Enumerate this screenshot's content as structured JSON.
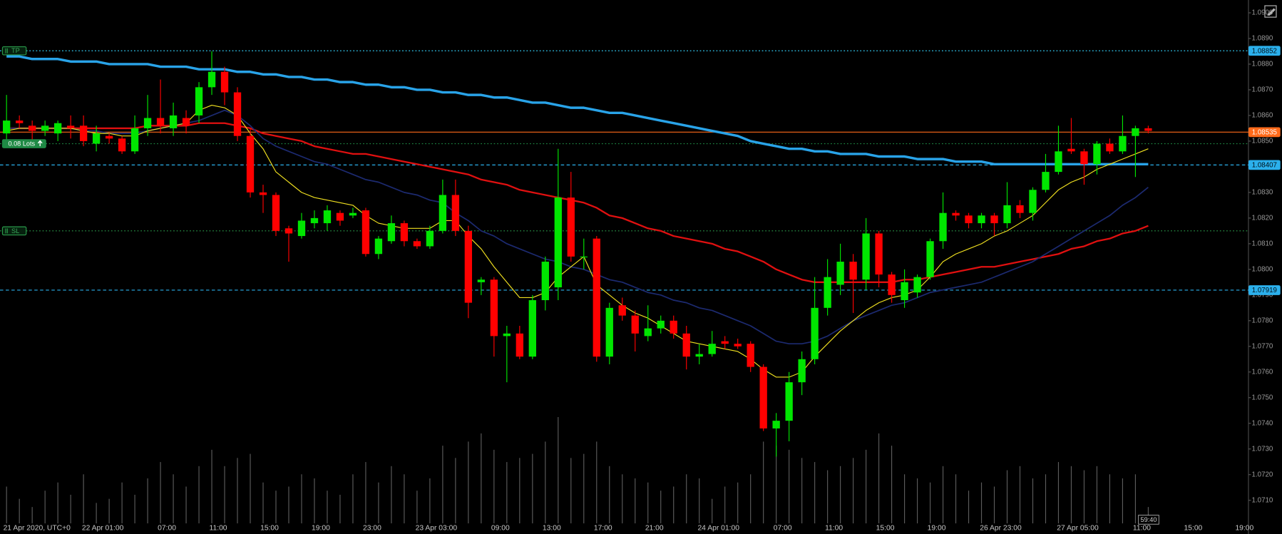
{
  "chart_data": {
    "type": "candlestick",
    "categories": [
      "21 Apr 2020, UTC+0",
      null,
      null,
      null,
      null,
      null,
      null,
      "22 Apr 01:00",
      null,
      null,
      null,
      null,
      "07:00",
      null,
      null,
      null,
      "11:00",
      null,
      null,
      null,
      "15:00",
      null,
      null,
      null,
      "19:00",
      null,
      null,
      null,
      "23:00",
      null,
      null,
      null,
      null,
      "23 Apr 03:00",
      null,
      null,
      null,
      null,
      "09:00",
      null,
      null,
      null,
      "13:00",
      null,
      null,
      null,
      "17:00",
      null,
      null,
      null,
      "21:00",
      null,
      null,
      null,
      null,
      "24 Apr 01:00",
      null,
      null,
      null,
      null,
      "07:00",
      null,
      null,
      null,
      "11:00",
      null,
      null,
      null,
      "15:00",
      null,
      null,
      null,
      "19:00",
      null,
      null,
      null,
      null,
      "26 Apr 23:00",
      null,
      null,
      null,
      null,
      null,
      "27 Apr 05:00",
      null,
      null,
      null,
      null,
      "11:00",
      null,
      null,
      null,
      "15:00",
      null,
      null,
      null,
      "19:00"
    ],
    "open": [
      1.0853,
      1.0858,
      1.0856,
      1.0854,
      1.0853,
      1.0856,
      1.0856,
      1.0849,
      1.0852,
      1.0851,
      1.0846,
      1.0855,
      1.0859,
      1.0855,
      1.0859,
      1.086,
      1.0871,
      1.0877,
      1.0869,
      1.0852,
      1.083,
      1.0829,
      1.0816,
      1.0813,
      1.0818,
      1.0818,
      1.0822,
      1.0821,
      1.0823,
      1.0806,
      1.0811,
      1.0818,
      1.0811,
      1.0809,
      1.0815,
      1.0829,
      1.0815,
      1.0795,
      1.0796,
      1.0774,
      1.0775,
      1.0766,
      1.0788,
      1.0793,
      1.0828,
      1.0805,
      1.0812,
      1.0766,
      1.0786,
      1.0782,
      1.0774,
      1.0777,
      1.078,
      1.0775,
      1.0766,
      1.0767,
      1.0772,
      1.0771,
      1.0771,
      1.0762,
      1.0738,
      1.0741,
      1.0756,
      1.0765,
      1.0785,
      1.0794,
      1.0803,
      1.0796,
      1.0814,
      1.0798,
      1.0788,
      1.0791,
      1.0797,
      1.0811,
      1.0822,
      1.0821,
      1.0818,
      1.0821,
      1.0818,
      1.0825,
      1.0822,
      1.0831,
      1.0838,
      1.0847,
      1.0846,
      1.0841,
      1.0849,
      1.0846,
      1.0852,
      1.0855,
      null,
      null,
      null,
      null,
      null,
      null,
      null
    ],
    "high": [
      1.0868,
      1.086,
      1.0858,
      1.0858,
      1.0858,
      1.086,
      1.086,
      1.0856,
      1.0853,
      1.0852,
      1.086,
      1.0868,
      1.0874,
      1.0865,
      1.0862,
      1.0873,
      1.0885,
      1.0879,
      1.0871,
      1.0855,
      1.0833,
      1.083,
      1.0817,
      1.0822,
      1.0823,
      1.0825,
      1.0823,
      1.0824,
      1.0824,
      1.0813,
      1.0821,
      1.0819,
      1.0812,
      1.0817,
      1.0835,
      1.0835,
      1.0817,
      1.0797,
      1.0797,
      1.0778,
      1.0778,
      1.079,
      1.0805,
      1.0847,
      1.0838,
      1.0812,
      1.0813,
      1.0787,
      1.0789,
      1.0784,
      1.0786,
      1.0782,
      1.0782,
      1.0778,
      1.0771,
      1.0776,
      1.0774,
      1.0773,
      1.0772,
      1.0763,
      1.0744,
      1.076,
      1.0768,
      1.0797,
      1.0804,
      1.081,
      1.0806,
      1.082,
      1.0815,
      1.0799,
      1.08,
      1.0798,
      1.0812,
      1.083,
      1.0823,
      1.0822,
      1.0822,
      1.0822,
      1.0834,
      1.0827,
      1.0832,
      1.0845,
      1.0856,
      1.0859,
      1.0847,
      1.085,
      1.0851,
      1.086,
      1.0856,
      1.0856,
      null,
      null,
      null,
      null,
      null,
      null,
      null
    ],
    "low": [
      1.0848,
      1.0855,
      1.085,
      1.0852,
      1.085,
      1.0851,
      1.0848,
      1.0846,
      1.0849,
      1.0845,
      1.0845,
      1.0852,
      1.0853,
      1.0852,
      1.0853,
      1.0857,
      1.0868,
      1.0864,
      1.085,
      1.0828,
      1.0822,
      1.0813,
      1.0803,
      1.0812,
      1.0816,
      1.0815,
      1.0817,
      1.082,
      1.0805,
      1.0804,
      1.081,
      1.0809,
      1.0808,
      1.0808,
      1.0814,
      1.0813,
      1.0781,
      1.079,
      1.0766,
      1.0756,
      1.0765,
      1.0765,
      1.0784,
      1.0788,
      1.0803,
      1.08,
      1.0764,
      1.0763,
      1.078,
      1.0768,
      1.0772,
      1.0775,
      1.0773,
      1.0761,
      1.0763,
      1.0766,
      1.0769,
      1.0769,
      1.076,
      1.0737,
      1.0727,
      1.0733,
      1.0751,
      1.0763,
      1.0782,
      1.079,
      1.0783,
      1.0792,
      1.0793,
      1.0787,
      1.0785,
      1.0789,
      1.0796,
      1.0808,
      1.0819,
      1.0816,
      1.0816,
      1.0813,
      1.0816,
      1.082,
      1.0819,
      1.083,
      1.0837,
      1.0845,
      1.0833,
      1.0837,
      1.0845,
      1.0845,
      1.0836,
      1.0853,
      null,
      null,
      null,
      null,
      null,
      null,
      null
    ],
    "close": [
      1.0858,
      1.0857,
      1.0854,
      1.0856,
      1.0857,
      1.0855,
      1.085,
      1.0853,
      1.0851,
      1.0846,
      1.0855,
      1.0859,
      1.0856,
      1.086,
      1.0856,
      1.0871,
      1.0877,
      1.0869,
      1.0852,
      1.083,
      1.0829,
      1.0815,
      1.0814,
      1.0819,
      1.082,
      1.0823,
      1.0819,
      1.0822,
      1.0806,
      1.0812,
      1.0818,
      1.0811,
      1.0809,
      1.0815,
      1.0829,
      1.0815,
      1.0787,
      1.0796,
      1.0774,
      1.0775,
      1.0766,
      1.0788,
      1.0803,
      1.0828,
      1.0805,
      1.0805,
      1.0766,
      1.0785,
      1.0782,
      1.0775,
      1.0777,
      1.078,
      1.0775,
      1.0766,
      1.0767,
      1.0771,
      1.0771,
      1.077,
      1.0762,
      1.0738,
      1.0741,
      1.0756,
      1.0765,
      1.0785,
      1.0797,
      1.0803,
      1.0796,
      1.0814,
      1.0798,
      1.079,
      1.0795,
      1.0797,
      1.0811,
      1.0822,
      1.0821,
      1.0818,
      1.0821,
      1.0818,
      1.0825,
      1.0822,
      1.0831,
      1.0838,
      1.0846,
      1.0846,
      1.0841,
      1.0849,
      1.0846,
      1.0852,
      1.0855,
      1.0854,
      null,
      null,
      null,
      null,
      null,
      null,
      null
    ],
    "volume": [
      45,
      30,
      20,
      40,
      50,
      35,
      60,
      25,
      30,
      50,
      35,
      55,
      75,
      60,
      45,
      70,
      90,
      70,
      80,
      85,
      50,
      40,
      45,
      60,
      55,
      40,
      35,
      60,
      75,
      50,
      70,
      60,
      40,
      55,
      95,
      80,
      100,
      110,
      90,
      75,
      80,
      85,
      100,
      130,
      80,
      85,
      100,
      70,
      60,
      55,
      50,
      40,
      45,
      60,
      55,
      30,
      45,
      50,
      60,
      100,
      95,
      90,
      80,
      75,
      65,
      70,
      80,
      90,
      110,
      95,
      60,
      55,
      50,
      70,
      60,
      40,
      50,
      45,
      65,
      70,
      55,
      60,
      75,
      70,
      65,
      70,
      60,
      55,
      60,
      20,
      null,
      null,
      null,
      null,
      null,
      null,
      null
    ],
    "up_color": "#00e600",
    "down_color": "#ff0000",
    "volume_color": "#5c5c5c",
    "moving_averages": [
      {
        "color": "#29a3e8",
        "width": 3,
        "values": [
          1.0883,
          1.0883,
          1.0882,
          1.0882,
          1.0882,
          1.0881,
          1.0881,
          1.0881,
          1.088,
          1.088,
          1.088,
          1.088,
          1.0879,
          1.0879,
          1.0879,
          1.0878,
          1.0878,
          1.0878,
          1.0877,
          1.0877,
          1.0876,
          1.0876,
          1.0875,
          1.0875,
          1.0874,
          1.0874,
          1.0873,
          1.0873,
          1.0872,
          1.0872,
          1.0871,
          1.0871,
          1.087,
          1.087,
          1.0869,
          1.0869,
          1.0868,
          1.0868,
          1.0867,
          1.0867,
          1.0866,
          1.0865,
          1.0865,
          1.0864,
          1.0863,
          1.0863,
          1.0862,
          1.0861,
          1.0861,
          1.086,
          1.0859,
          1.0858,
          1.0857,
          1.0856,
          1.0855,
          1.0854,
          1.0853,
          1.0852,
          1.085,
          1.0849,
          1.0848,
          1.0847,
          1.0847,
          1.0846,
          1.0846,
          1.0845,
          1.0845,
          1.0845,
          1.0844,
          1.0844,
          1.0844,
          1.0843,
          1.0843,
          1.0843,
          1.0842,
          1.0842,
          1.0842,
          1.0841,
          1.0841,
          1.0841,
          1.0841,
          1.0841,
          1.0841,
          1.0841,
          1.0841,
          1.0841,
          1.0841,
          1.0841,
          1.0841,
          1.0841,
          null,
          null,
          null,
          null,
          null,
          null,
          null
        ]
      },
      {
        "color": "#e01010",
        "width": 2,
        "values": [
          1.0855,
          1.0855,
          1.0855,
          1.0855,
          1.0855,
          1.0855,
          1.0855,
          1.0855,
          1.0855,
          1.0855,
          1.0855,
          1.0856,
          1.0856,
          1.0856,
          1.0856,
          1.0857,
          1.0857,
          1.0857,
          1.0856,
          1.0855,
          1.0853,
          1.0852,
          1.0851,
          1.085,
          1.0848,
          1.0847,
          1.0846,
          1.0845,
          1.0845,
          1.0844,
          1.0843,
          1.0842,
          1.0841,
          1.084,
          1.0839,
          1.0838,
          1.0837,
          1.0835,
          1.0834,
          1.0833,
          1.0831,
          1.083,
          1.0829,
          1.0828,
          1.0827,
          1.0826,
          1.0824,
          1.0821,
          1.082,
          1.0818,
          1.0816,
          1.0815,
          1.0813,
          1.0812,
          1.0811,
          1.081,
          1.0808,
          1.0807,
          1.0805,
          1.0803,
          1.08,
          1.0798,
          1.0796,
          1.0795,
          1.0795,
          1.0795,
          1.0795,
          1.0795,
          1.0795,
          1.0795,
          1.0796,
          1.0796,
          1.0797,
          1.0798,
          1.0799,
          1.08,
          1.0801,
          1.0801,
          1.0802,
          1.0803,
          1.0804,
          1.0805,
          1.0806,
          1.0808,
          1.0809,
          1.0811,
          1.0812,
          1.0814,
          1.0815,
          1.0817,
          null,
          null,
          null,
          null,
          null,
          null,
          null
        ]
      },
      {
        "color": "#1c2a70",
        "width": 1.5,
        "values": [
          1.0855,
          1.0855,
          1.0855,
          1.0855,
          1.0855,
          1.0855,
          1.0854,
          1.0854,
          1.0853,
          1.0853,
          1.0853,
          1.0854,
          1.0855,
          1.0856,
          1.0857,
          1.0858,
          1.086,
          1.0862,
          1.086,
          1.0856,
          1.0851,
          1.0848,
          1.0846,
          1.0844,
          1.0842,
          1.0841,
          1.0839,
          1.0837,
          1.0835,
          1.0834,
          1.0832,
          1.083,
          1.0829,
          1.0827,
          1.0826,
          1.0822,
          1.0819,
          1.0815,
          1.0813,
          1.081,
          1.0808,
          1.0806,
          1.0804,
          1.0803,
          1.0801,
          1.08,
          1.0798,
          1.0796,
          1.0795,
          1.0793,
          1.0791,
          1.079,
          1.0788,
          1.0787,
          1.0785,
          1.0784,
          1.0782,
          1.078,
          1.0778,
          1.0775,
          1.0772,
          1.0771,
          1.0771,
          1.0772,
          1.0774,
          1.0777,
          1.078,
          1.0782,
          1.0784,
          1.0786,
          1.0787,
          1.0789,
          1.0791,
          1.0792,
          1.0793,
          1.0794,
          1.0795,
          1.0797,
          1.0799,
          1.0801,
          1.0803,
          1.0806,
          1.0809,
          1.0812,
          1.0815,
          1.0818,
          1.0821,
          1.0825,
          1.0828,
          1.0832,
          null,
          null,
          null,
          null,
          null,
          null,
          null
        ]
      },
      {
        "color": "#f0e020",
        "width": 1,
        "values": [
          1.0854,
          1.0855,
          1.0855,
          1.0855,
          1.0855,
          1.0855,
          1.0854,
          1.0853,
          1.0853,
          1.0852,
          1.0852,
          1.0854,
          1.0855,
          1.0856,
          1.0857,
          1.0862,
          1.0864,
          1.0863,
          1.086,
          1.0853,
          1.0847,
          1.0838,
          1.0834,
          1.083,
          1.0828,
          1.0827,
          1.0826,
          1.0825,
          1.0821,
          1.0818,
          1.0817,
          1.0816,
          1.0816,
          1.0816,
          1.0819,
          1.0819,
          1.0813,
          1.0808,
          1.0801,
          1.0795,
          1.0789,
          1.0789,
          1.0791,
          1.0797,
          1.0801,
          1.0805,
          1.0794,
          1.079,
          1.0786,
          1.0783,
          1.0781,
          1.0778,
          1.0775,
          1.0772,
          1.0771,
          1.077,
          1.0769,
          1.0768,
          1.0765,
          1.0761,
          1.0758,
          1.0758,
          1.076,
          1.0766,
          1.0771,
          1.0776,
          1.078,
          1.0784,
          1.0787,
          1.0789,
          1.079,
          1.0792,
          1.0797,
          1.0803,
          1.0806,
          1.0808,
          1.081,
          1.0813,
          1.0815,
          1.0818,
          1.0821,
          1.0826,
          1.0831,
          1.0834,
          1.0836,
          1.0839,
          1.0841,
          1.0843,
          1.0845,
          1.0847,
          null,
          null,
          null,
          null,
          null,
          null,
          null
        ]
      }
    ],
    "ylim": [
      1.0701,
      1.0905
    ],
    "yticks": [
      {
        "value": 1.09,
        "label": "1.0900"
      },
      {
        "value": 1.089,
        "label": "1.0890"
      },
      {
        "value": 1.088,
        "label": "1.0880"
      },
      {
        "value": 1.087,
        "label": "1.0870"
      },
      {
        "value": 1.086,
        "label": "1.0860"
      },
      {
        "value": 1.085,
        "label": "1.0850"
      },
      {
        "value": 1.084,
        "label": "1.0840"
      },
      {
        "value": 1.083,
        "label": "1.0830"
      },
      {
        "value": 1.082,
        "label": "1.0820"
      },
      {
        "value": 1.081,
        "label": "1.0810"
      },
      {
        "value": 1.08,
        "label": "1.0800"
      },
      {
        "value": 1.079,
        "label": "1.0790"
      },
      {
        "value": 1.078,
        "label": "1.0780"
      },
      {
        "value": 1.077,
        "label": "1.0770"
      },
      {
        "value": 1.076,
        "label": "1.0760"
      },
      {
        "value": 1.075,
        "label": "1.0750"
      },
      {
        "value": 1.074,
        "label": "1.0740"
      },
      {
        "value": 1.073,
        "label": "1.0730"
      },
      {
        "value": 1.072,
        "label": "1.0720"
      },
      {
        "value": 1.071,
        "label": "1.0710"
      }
    ],
    "price_lines": [
      {
        "value": 1.08852,
        "color": "#2bb0ec",
        "text_color": "#001018",
        "style": "dotted"
      },
      {
        "value": 1.08535,
        "color": "#ff6a1a",
        "text_color": "#ffffff",
        "style": "solid"
      },
      {
        "value": 1.08407,
        "color": "#2bb0ec",
        "text_color": "#001018",
        "style": "dashed"
      },
      {
        "value": 1.07919,
        "color": "#2bb0ec",
        "text_color": "#001018",
        "style": "dashed"
      }
    ],
    "orders": [
      {
        "label": "TP",
        "value": 1.08852,
        "color": "#2a9a4a",
        "filled": false
      },
      {
        "label": "0.08 Lots",
        "value": 1.0849,
        "color": "#1f8a45",
        "filled": true
      },
      {
        "label": "SL",
        "value": 1.0815,
        "color": "#2a9a4a",
        "filled": false
      }
    ],
    "timer": "59:40"
  }
}
